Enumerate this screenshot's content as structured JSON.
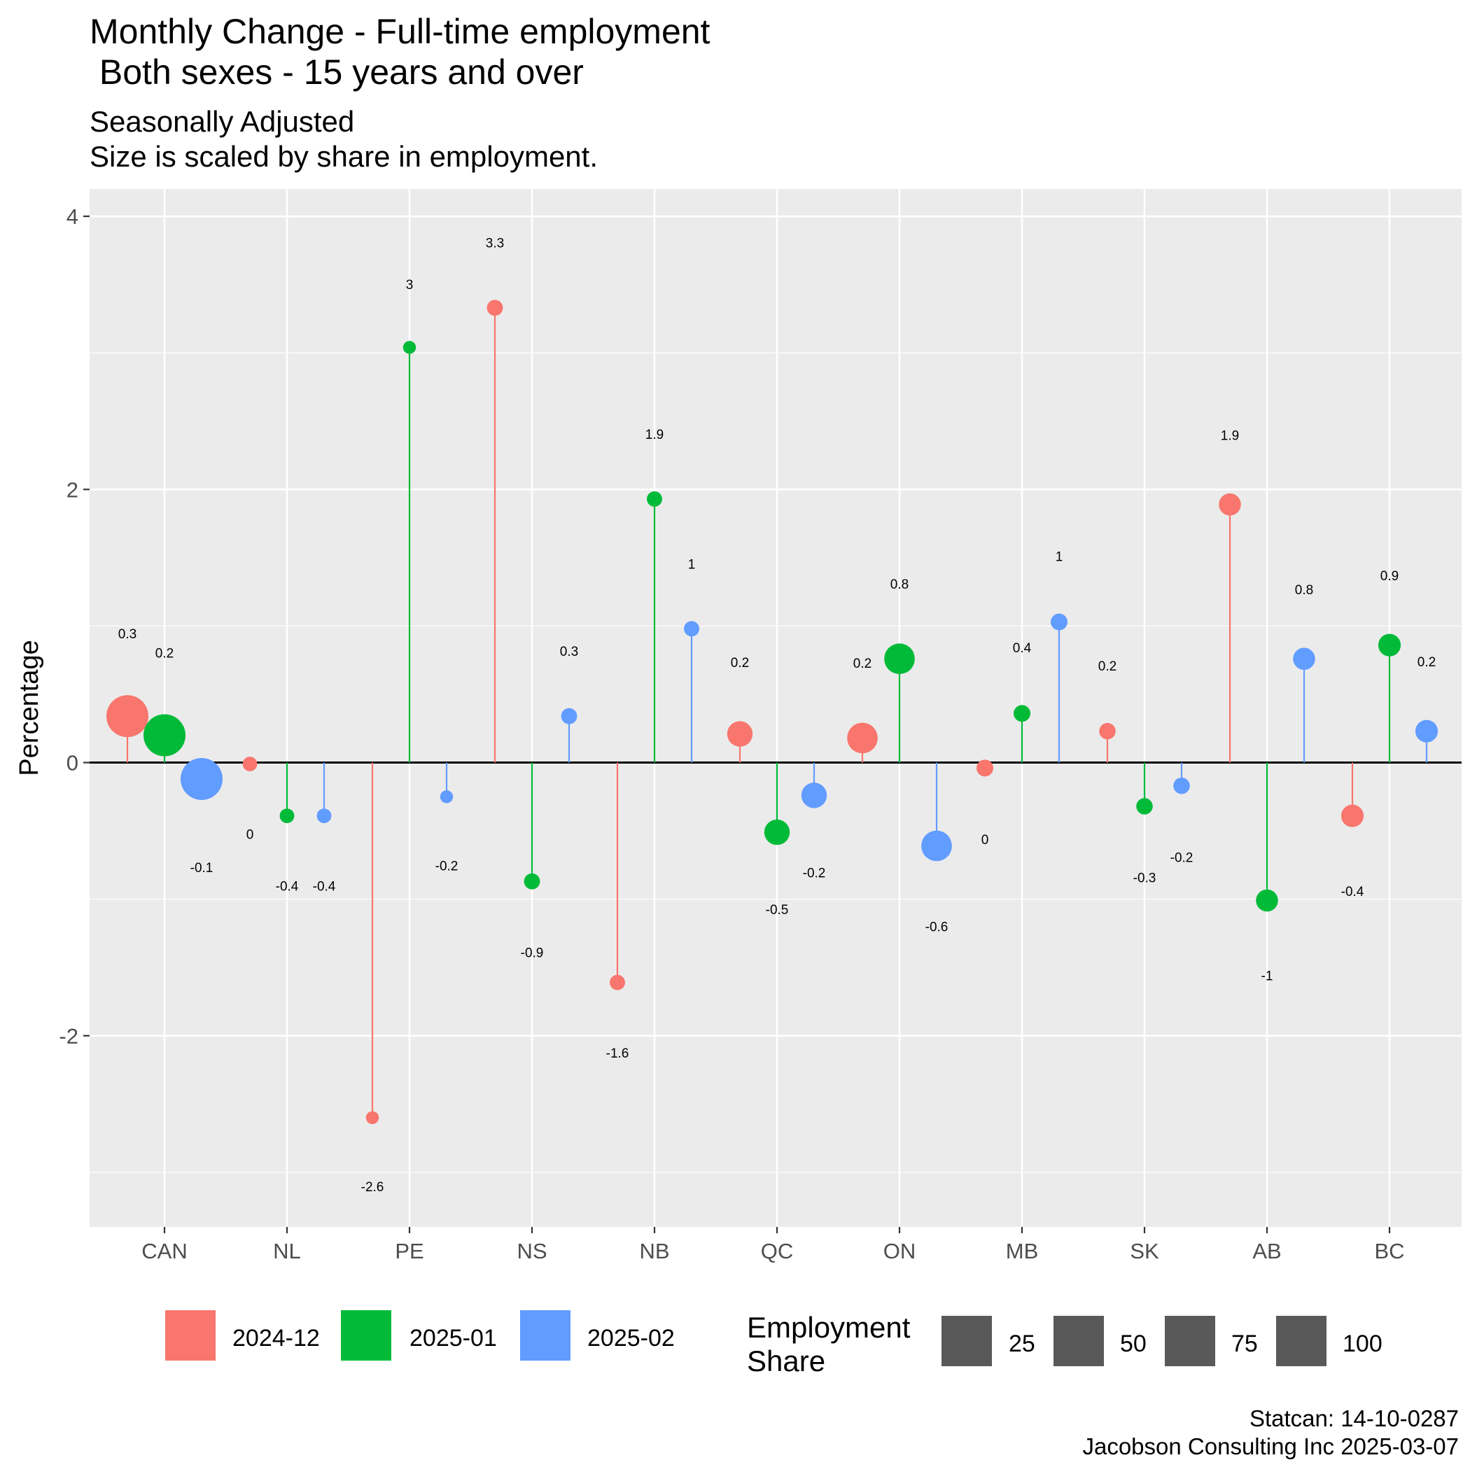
{
  "chart_data": {
    "type": "lollipop",
    "title": "Monthly Change - Full-time employment\n Both sexes - 15 years and over",
    "subtitle": "Seasonally Adjusted\nSize is scaled by share in employment.",
    "ylabel": "Percentage",
    "xlabel": "",
    "ylim": [
      -3.4,
      4.2
    ],
    "yticks": [
      -2,
      0,
      2,
      4
    ],
    "ytick_labels": [
      "-2",
      "0",
      "2",
      "4"
    ],
    "categories": [
      "CAN",
      "NL",
      "PE",
      "NS",
      "NB",
      "QC",
      "ON",
      "MB",
      "SK",
      "AB",
      "BC"
    ],
    "grid": true,
    "legend_position": "bottom",
    "series": [
      {
        "name": "2024-12",
        "color": "#F8766D",
        "values": [
          0.34,
          -0.01,
          -2.6,
          3.33,
          -1.61,
          0.21,
          0.18,
          -0.04,
          0.23,
          1.89,
          -0.39
        ],
        "labels": [
          "0.3",
          "0",
          "-2.6",
          "3.3",
          "-1.6",
          "0.2",
          "0.2",
          "0",
          "0.2",
          "1.9",
          "-0.4"
        ]
      },
      {
        "name": "2025-01",
        "color": "#00BA38",
        "values": [
          0.2,
          -0.39,
          3.04,
          -0.87,
          1.93,
          -0.51,
          0.76,
          0.36,
          -0.32,
          -1.01,
          0.86
        ],
        "labels": [
          "0.2",
          "-0.4",
          "3",
          "-0.9",
          "1.9",
          "-0.5",
          "0.8",
          "0.4",
          "-0.3",
          "-1",
          "0.9"
        ]
      },
      {
        "name": "2025-02",
        "color": "#619CFF",
        "values": [
          -0.12,
          -0.39,
          -0.25,
          0.34,
          0.98,
          -0.24,
          -0.61,
          1.03,
          -0.17,
          0.76,
          0.23
        ],
        "labels": [
          "-0.1",
          "-0.4",
          "-0.2",
          "0.3",
          "1",
          "-0.2",
          "-0.6",
          "1",
          "-0.2",
          "0.8",
          "0.2"
        ]
      }
    ],
    "employment_share": [
      100,
      1.2,
      0.3,
      2.4,
      1.8,
      21.5,
      39.6,
      3.3,
      2.9,
      12.5,
      13.5
    ],
    "color_legend": [
      "2024-12",
      "2025-01",
      "2025-02"
    ],
    "size_legend_title": "Employment\nShare",
    "size_legend": [
      "25",
      "50",
      "75",
      "100"
    ],
    "caption": "Statcan: 14-10-0287\nJacobson Consulting Inc 2025-03-07"
  }
}
